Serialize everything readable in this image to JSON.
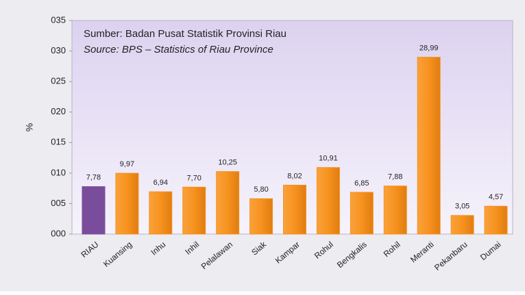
{
  "chart_data": {
    "type": "bar",
    "y_label": "%",
    "annotations": [
      "Sumber: Badan Pusat Statistik Provinsi Riau",
      "Source: BPS – Statistics of Riau Province"
    ],
    "categories": [
      "RIAU",
      "Kuansing",
      "Inhu",
      "Inhil",
      "Pelalawan",
      "Siak",
      "Kampar",
      "Rohul",
      "Bengkalis",
      "Rohil",
      "Meranti",
      "Pekanbaru",
      "Dumai"
    ],
    "values": [
      7.78,
      9.97,
      6.94,
      7.7,
      10.25,
      5.8,
      8.02,
      10.91,
      6.85,
      7.88,
      28.99,
      3.05,
      4.57
    ],
    "value_labels": [
      "7,78",
      "9,97",
      "6,94",
      "7,70",
      "10,25",
      "5,80",
      "8,02",
      "10,91",
      "6,85",
      "7,88",
      "28,99",
      "3,05",
      "4,57"
    ],
    "colors": [
      "#7a4d9c",
      "#f7921e",
      "#f7921e",
      "#f7921e",
      "#f7921e",
      "#f7921e",
      "#f7921e",
      "#f7921e",
      "#f7921e",
      "#f7921e",
      "#f7921e",
      "#f7921e",
      "#f7921e"
    ],
    "ylim": [
      0,
      35
    ],
    "yticks": [
      {
        "value": 0,
        "label": "000"
      },
      {
        "value": 5,
        "label": "005"
      },
      {
        "value": 10,
        "label": "010"
      },
      {
        "value": 15,
        "label": "015"
      },
      {
        "value": 20,
        "label": "020"
      },
      {
        "value": 25,
        "label": "025"
      },
      {
        "value": 30,
        "label": "030"
      },
      {
        "value": 35,
        "label": "035"
      }
    ],
    "grid": false
  }
}
